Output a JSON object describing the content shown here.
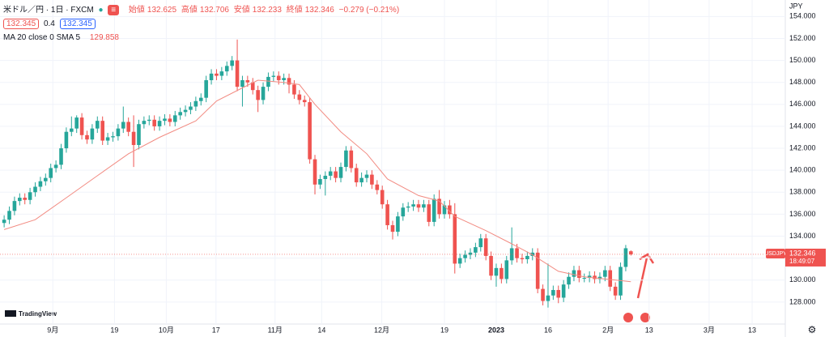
{
  "chart_data": {
    "type": "candlestick",
    "title": "米ドル／円 · 1日 · FXCM",
    "quote_left": "132.345",
    "spread": "0.4",
    "quote_right": "132.345",
    "ohlc_labels": [
      "始値",
      "高値",
      "安値",
      "終値"
    ],
    "change_label": "−0.279 (−0.21%)",
    "indicator_label": "MA 20 close 0 SMA 5",
    "currency": "JPY",
    "symbol": "USDJPY",
    "countdown": "18:49:07",
    "brand": "TradingView",
    "up_color": "#26a69a",
    "down_color": "#ef5350",
    "sma_color": "#f28b82",
    "open": [
      135.2,
      135.5,
      136.3,
      137.2,
      137.5,
      137.3,
      138.0,
      138.5,
      139.0,
      139.3,
      140.2,
      140.5,
      142.0,
      143.5,
      143.8,
      144.8,
      143.2,
      142.8,
      143.8,
      144.5,
      142.7,
      143.0,
      143.1,
      143.8,
      144.4,
      143.5,
      142.3,
      144.2,
      144.5,
      144.6,
      144.0,
      144.5,
      144.7,
      144.4,
      145.0,
      145.3,
      145.5,
      145.8,
      146.3,
      146.6,
      148.2,
      148.8,
      148.6,
      149.0,
      149.5,
      150.0,
      147.6,
      148.2,
      148.0,
      147.3,
      146.4,
      147.6,
      148.5,
      148.6,
      148.2,
      148.4,
      147.8,
      146.9,
      146.4,
      146.2,
      141.0,
      138.7,
      139.2,
      139.5,
      139.9,
      139.3,
      140.3,
      141.8,
      140.2,
      138.9,
      139.3,
      139.6,
      138.7,
      138.2,
      136.9,
      135.0,
      134.4,
      135.8,
      136.6,
      136.7,
      136.9,
      136.6,
      136.9,
      135.3,
      137.4,
      136.0,
      136.8,
      136.0,
      131.5,
      132.0,
      132.3,
      132.5,
      133.0,
      133.8,
      132.2,
      130.4,
      131.1,
      130.1,
      131.8,
      132.9,
      132.0,
      131.9,
      132.2,
      132.5,
      129.2,
      128.1,
      128.6,
      129.1,
      128.4,
      129.6,
      130.3,
      130.9,
      130.2,
      130.2,
      130.4,
      130.1,
      130.3,
      130.9,
      129.4,
      128.6,
      131.2,
      132.625
    ],
    "high": [
      135.9,
      136.7,
      137.6,
      137.9,
      137.9,
      138.4,
      138.9,
      139.4,
      139.7,
      140.6,
      140.9,
      142.4,
      143.9,
      144.9,
      145.0,
      145.2,
      143.6,
      144.2,
      144.9,
      144.9,
      143.4,
      143.5,
      144.2,
      145.8,
      144.8,
      145.0,
      144.6,
      144.9,
      145.0,
      145.0,
      144.9,
      145.1,
      145.1,
      145.4,
      145.7,
      145.9,
      146.2,
      146.7,
      147.0,
      148.6,
      149.2,
      149.2,
      149.4,
      149.9,
      150.4,
      151.9,
      148.6,
      148.6,
      148.4,
      147.7,
      148.0,
      148.9,
      149.0,
      149.0,
      148.8,
      148.8,
      148.2,
      147.3,
      146.8,
      146.6,
      141.4,
      139.6,
      139.9,
      140.3,
      140.3,
      140.7,
      142.2,
      142.2,
      140.6,
      139.8,
      140.0,
      140.0,
      139.1,
      138.6,
      137.3,
      135.4,
      136.2,
      137.0,
      137.1,
      137.3,
      137.3,
      137.3,
      137.3,
      137.8,
      138.2,
      137.2,
      137.3,
      137.0,
      132.4,
      132.7,
      132.9,
      133.4,
      134.2,
      134.2,
      132.6,
      131.5,
      131.5,
      132.2,
      134.8,
      133.3,
      132.4,
      132.6,
      132.9,
      132.9,
      129.6,
      131.5,
      129.5,
      129.5,
      130.0,
      130.7,
      131.3,
      131.3,
      130.6,
      130.8,
      130.8,
      130.7,
      131.3,
      131.3,
      129.8,
      131.6,
      133.2,
      132.706
    ],
    "low": [
      134.8,
      135.1,
      135.9,
      136.8,
      136.9,
      136.9,
      137.6,
      138.1,
      138.6,
      138.9,
      139.8,
      140.1,
      141.6,
      143.1,
      143.4,
      142.8,
      142.4,
      142.4,
      143.4,
      142.3,
      142.3,
      142.6,
      142.7,
      143.4,
      143.1,
      140.3,
      141.9,
      143.8,
      144.1,
      143.6,
      143.6,
      144.1,
      144.0,
      144.0,
      144.6,
      144.9,
      145.1,
      145.4,
      145.9,
      146.2,
      147.8,
      148.2,
      148.2,
      148.6,
      149.1,
      147.2,
      145.8,
      147.6,
      146.9,
      145.3,
      146.0,
      147.2,
      148.1,
      147.8,
      147.8,
      147.0,
      146.5,
      146.0,
      145.8,
      140.6,
      137.8,
      138.3,
      137.7,
      139.1,
      138.9,
      138.9,
      139.9,
      139.8,
      138.5,
      138.5,
      138.9,
      138.3,
      137.8,
      136.5,
      134.6,
      133.7,
      134.0,
      135.4,
      136.2,
      136.3,
      136.2,
      136.2,
      134.9,
      134.9,
      135.6,
      135.6,
      135.6,
      130.6,
      131.1,
      131.6,
      131.9,
      132.1,
      132.6,
      131.8,
      130.0,
      129.4,
      129.7,
      129.7,
      131.4,
      131.6,
      131.5,
      131.5,
      131.8,
      128.8,
      127.7,
      127.5,
      128.2,
      127.9,
      128.0,
      129.2,
      129.9,
      129.8,
      129.8,
      129.8,
      129.7,
      129.7,
      129.9,
      129.0,
      128.2,
      128.2,
      130.8,
      132.233
    ],
    "close": [
      135.5,
      136.3,
      137.2,
      137.5,
      137.3,
      138.0,
      138.5,
      139.0,
      139.3,
      140.2,
      140.5,
      142.0,
      143.5,
      143.8,
      144.8,
      143.2,
      142.8,
      143.8,
      144.5,
      142.7,
      143.0,
      143.1,
      143.8,
      144.4,
      143.5,
      142.3,
      144.2,
      144.5,
      144.6,
      144.0,
      144.5,
      144.7,
      144.4,
      145.0,
      145.3,
      145.5,
      145.8,
      146.3,
      146.6,
      148.2,
      148.8,
      148.6,
      149.0,
      149.5,
      150.0,
      147.6,
      148.2,
      148.0,
      147.3,
      146.4,
      147.6,
      148.5,
      148.6,
      148.2,
      148.4,
      147.8,
      146.9,
      146.4,
      146.2,
      141.0,
      138.7,
      139.2,
      139.5,
      139.9,
      139.3,
      140.3,
      141.8,
      140.2,
      138.9,
      139.3,
      139.6,
      138.7,
      138.2,
      136.9,
      135.0,
      134.4,
      135.8,
      136.6,
      136.7,
      136.9,
      136.6,
      136.9,
      135.3,
      137.4,
      136.0,
      136.8,
      136.0,
      131.5,
      132.0,
      132.3,
      132.5,
      133.0,
      133.8,
      132.2,
      130.4,
      131.1,
      130.1,
      131.8,
      132.9,
      132.0,
      131.9,
      132.2,
      132.5,
      129.2,
      128.1,
      128.6,
      129.1,
      128.4,
      129.6,
      130.3,
      130.9,
      130.2,
      130.2,
      130.4,
      130.1,
      130.3,
      130.9,
      129.4,
      128.6,
      131.2,
      132.9,
      132.346
    ],
    "sma_x": [
      0,
      6,
      12,
      18,
      24,
      30,
      37,
      41,
      46,
      49,
      54,
      57,
      60,
      65,
      70,
      74,
      80,
      84,
      87,
      93,
      98,
      102,
      107,
      112,
      121
    ],
    "sma": [
      134.6,
      135.5,
      137.5,
      139.5,
      141.5,
      143.0,
      144.5,
      146.3,
      147.5,
      148.2,
      148.0,
      147.8,
      146.0,
      143.5,
      141.5,
      139.2,
      137.7,
      137.2,
      135.8,
      134.5,
      133.3,
      132.3,
      130.8,
      130.3,
      129.858
    ],
    "xlim": [
      -0.8,
      150.8
    ],
    "xticks": [
      {
        "value": 9.4,
        "label": "9月"
      },
      {
        "value": 21.3,
        "label": "19"
      },
      {
        "value": 31.3,
        "label": "10月"
      },
      {
        "value": 40.9,
        "label": "17"
      },
      {
        "value": 52.3,
        "label": "11月"
      },
      {
        "value": 61.3,
        "label": "14"
      },
      {
        "value": 72.9,
        "label": "12月"
      },
      {
        "value": 85,
        "label": "19"
      },
      {
        "value": 95,
        "label": "2023"
      },
      {
        "value": 105,
        "label": "16"
      },
      {
        "value": 116.6,
        "label": "2月"
      },
      {
        "value": 124.5,
        "label": "13"
      },
      {
        "value": 136.1,
        "label": "3月"
      },
      {
        "value": 144.4,
        "label": "13"
      }
    ],
    "ylim": [
      126.0,
      155.5
    ],
    "yticks": [
      {
        "value": 128,
        "label": "128.000"
      },
      {
        "value": 130,
        "label": "130.000"
      },
      {
        "value": 132,
        "label": "132.000"
      },
      {
        "value": 134,
        "label": "134.000"
      },
      {
        "value": 136,
        "label": "136.000"
      },
      {
        "value": 138,
        "label": "138.000"
      },
      {
        "value": 140,
        "label": "140.000"
      },
      {
        "value": 142,
        "label": "142.000"
      },
      {
        "value": 144,
        "label": "144.000"
      },
      {
        "value": 146,
        "label": "146.000"
      },
      {
        "value": 148,
        "label": "148.000"
      },
      {
        "value": 150,
        "label": "150.000"
      },
      {
        "value": 152,
        "label": "152.000"
      },
      {
        "value": 154,
        "label": "154.000"
      }
    ]
  }
}
